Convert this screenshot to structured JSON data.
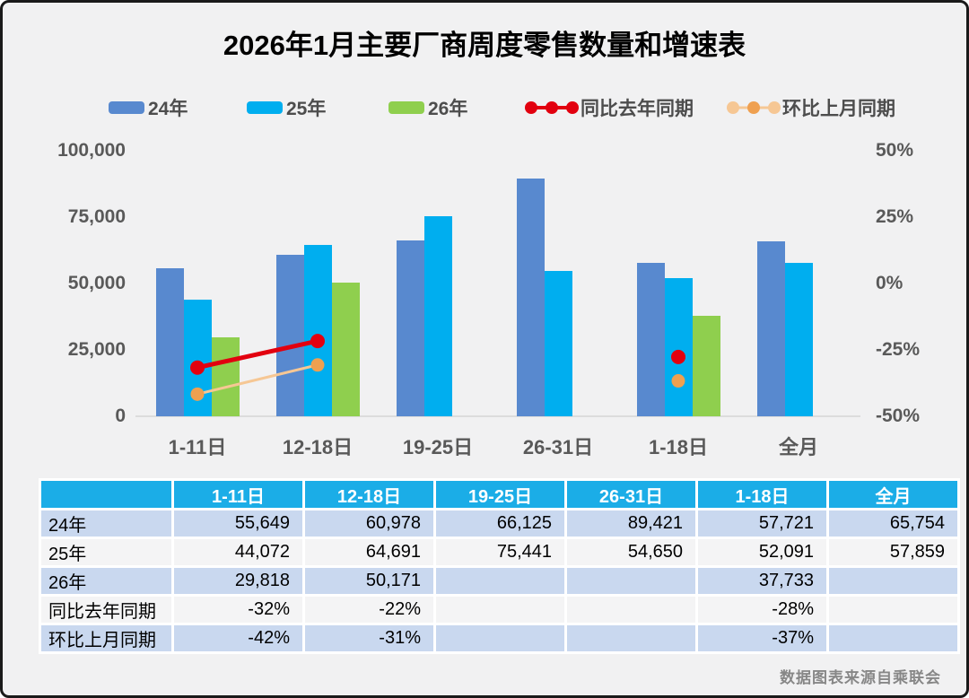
{
  "frame": {
    "title": "2026年1月主要厂商周度零售数量和增速表",
    "watermark": "数据图表来源自乘联会"
  },
  "chart_data": {
    "type": "bar",
    "title": "2026年1月主要厂商周度零售数量和增速表",
    "categories": [
      "1-11日",
      "12-18日",
      "19-25日",
      "26-31日",
      "1-18日",
      "全月"
    ],
    "series": [
      {
        "name": "24年",
        "color": "#5889CF",
        "values": [
          55649,
          60978,
          66125,
          89421,
          57721,
          65754
        ]
      },
      {
        "name": "25年",
        "color": "#00AEEF",
        "values": [
          44072,
          64691,
          75441,
          54650,
          52091,
          57859
        ]
      },
      {
        "name": "26年",
        "color": "#8FCF4E",
        "values": [
          29818,
          50171,
          null,
          null,
          37733,
          null
        ]
      }
    ],
    "line_series": [
      {
        "name": "同比去年同期",
        "color": "#E2000F",
        "line_color": "#E2000F",
        "line_width": 5,
        "dot_radius": 8,
        "values": [
          -32,
          -22,
          null,
          null,
          -28,
          null
        ]
      },
      {
        "name": "环比上月同期",
        "color": "#EFA050",
        "line_color": "#F6C794",
        "line_width": 3,
        "dot_radius": 7.5,
        "values": [
          -42,
          -31,
          null,
          null,
          -37,
          null
        ]
      }
    ],
    "left_axis": {
      "min": 0,
      "max": 100000,
      "ticks": [
        "100,000",
        "75,000",
        "50,000",
        "25,000",
        "0"
      ]
    },
    "right_axis": {
      "min": -50,
      "max": 50,
      "ticks": [
        "50%",
        "25%",
        "0%",
        "-25%",
        "-50%"
      ]
    },
    "grid": false,
    "legend_position": "top",
    "legend": [
      {
        "label": "24年",
        "type": "bar",
        "color": "#5889CF"
      },
      {
        "label": "25年",
        "type": "bar",
        "color": "#00AEEF"
      },
      {
        "label": "26年",
        "type": "bar",
        "color": "#8FCF4E"
      },
      {
        "label": "同比去年同期",
        "type": "line",
        "color": "#E2000F",
        "line_color": "#E2000F",
        "dots": [
          "#E2000F",
          "#E2000F",
          "#E2000F"
        ],
        "line_width": 4
      },
      {
        "label": "环比上月同期",
        "type": "line",
        "color": "#EFA050",
        "line_color": "#F6C794",
        "dots": [
          "#F6C794",
          "#EFA050",
          "#F6C794"
        ],
        "line_width": 3
      }
    ]
  },
  "table": {
    "headers": [
      "",
      "1-11日",
      "12-18日",
      "19-25日",
      "26-31日",
      "1-18日",
      "全月"
    ],
    "rows": [
      {
        "label": "24年",
        "cells": [
          "55,649",
          "60,978",
          "66,125",
          "89,421",
          "57,721",
          "65,754"
        ]
      },
      {
        "label": "25年",
        "cells": [
          "44,072",
          "64,691",
          "75,441",
          "54,650",
          "52,091",
          "57,859"
        ]
      },
      {
        "label": "26年",
        "cells": [
          "29,818",
          "50,171",
          "",
          "",
          "37,733",
          ""
        ]
      },
      {
        "label": "同比去年同期",
        "cells": [
          "-32%",
          "-22%",
          "",
          "",
          "-28%",
          ""
        ]
      },
      {
        "label": "环比上月同期",
        "cells": [
          "-42%",
          "-31%",
          "",
          "",
          "-37%",
          ""
        ]
      }
    ]
  },
  "colors": {
    "background": "#F1F1F2",
    "frame_border": "#1a1a1a",
    "axis_text": "#595959",
    "table_header_bg": "#1BADE7",
    "table_row_alt": "#C9D8EF",
    "table_row_plain": "#F4F4F5",
    "baseline": "#dcdcdc",
    "watermark_text": "#878787"
  }
}
